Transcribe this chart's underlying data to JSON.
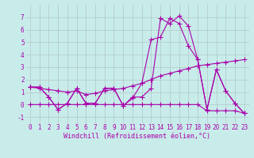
{
  "bg_color": "#c8ecea",
  "grid_color": "#b0c8c8",
  "line_color": "#aa00aa",
  "marker": "+",
  "markersize": 4,
  "linewidth": 0.8,
  "xlabel": "Windchill (Refroidissement éolien,°C)",
  "xlabel_fontsize": 6,
  "tick_fontsize": 5.5,
  "ylim": [
    -1.5,
    8.0
  ],
  "xlim": [
    -0.5,
    23.5
  ],
  "yticks": [
    -1,
    0,
    1,
    2,
    3,
    4,
    5,
    6,
    7
  ],
  "xticks": [
    0,
    1,
    2,
    3,
    4,
    5,
    6,
    7,
    8,
    9,
    10,
    11,
    12,
    13,
    14,
    15,
    16,
    17,
    18,
    19,
    20,
    21,
    22,
    23
  ],
  "series": [
    [
      1.4,
      1.4,
      0.6,
      -0.4,
      0.1,
      1.3,
      0.1,
      0.1,
      1.3,
      1.3,
      -0.1,
      0.5,
      1.7,
      5.2,
      5.4,
      6.9,
      6.5,
      4.7,
      3.6,
      -0.4,
      2.8,
      1.1,
      0.1,
      -0.7
    ],
    [
      1.4,
      1.4,
      0.6,
      -0.4,
      0.1,
      1.3,
      0.1,
      0.1,
      1.3,
      1.3,
      -0.1,
      0.6,
      0.6,
      1.3,
      6.9,
      6.5,
      7.1,
      6.3,
      3.6,
      -0.4,
      2.8,
      1.1,
      0.1,
      -0.7
    ],
    [
      1.4,
      1.3,
      1.2,
      1.1,
      1.0,
      1.1,
      0.8,
      0.9,
      1.1,
      1.2,
      1.3,
      1.5,
      1.7,
      2.0,
      2.3,
      2.5,
      2.7,
      2.9,
      3.1,
      3.2,
      3.3,
      3.4,
      3.5,
      3.6
    ],
    [
      0.0,
      0.0,
      0.0,
      0.0,
      0.0,
      0.0,
      0.0,
      0.0,
      0.0,
      0.0,
      0.0,
      0.0,
      0.0,
      0.0,
      0.0,
      0.0,
      0.0,
      0.0,
      0.0,
      -0.5,
      -0.5,
      -0.5,
      -0.5,
      -0.7
    ]
  ]
}
